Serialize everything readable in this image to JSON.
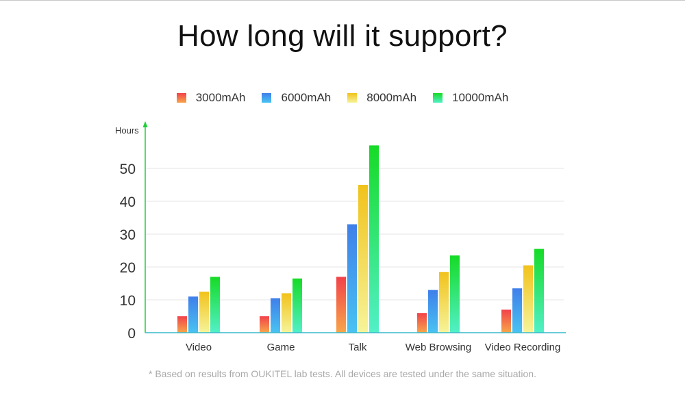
{
  "title": "How long will it support?",
  "footnote": "* Based on results from OUKITEL lab tests. All devices are tested under the same situation.",
  "chart_data": {
    "type": "bar",
    "title": "How long will it support?",
    "ylabel": "Hours",
    "xlabel": "",
    "ylim": [
      0,
      55
    ],
    "yticks": [
      0,
      10,
      20,
      30,
      40,
      50
    ],
    "grid": true,
    "legend_position": "top-center",
    "categories": [
      "Video",
      "Game",
      "Talk",
      "Web Browsing",
      "Video Recording"
    ],
    "series": [
      {
        "name": "3000mAh",
        "values": [
          5,
          5,
          17,
          6,
          7
        ],
        "color_top": "#f2424a",
        "color_bottom": "#f7a64a"
      },
      {
        "name": "6000mAh",
        "values": [
          11,
          10.5,
          33,
          13,
          13.5
        ],
        "color_top": "#3f7fea",
        "color_bottom": "#49c3f2"
      },
      {
        "name": "8000mAh",
        "values": [
          12.5,
          12,
          45,
          18.5,
          20.5
        ],
        "color_top": "#f1c21b",
        "color_bottom": "#f6f49a"
      },
      {
        "name": "10000mAh",
        "values": [
          17,
          16.5,
          57,
          23.5,
          25.5
        ],
        "color_top": "#16db26",
        "color_bottom": "#52f0c8"
      }
    ]
  }
}
